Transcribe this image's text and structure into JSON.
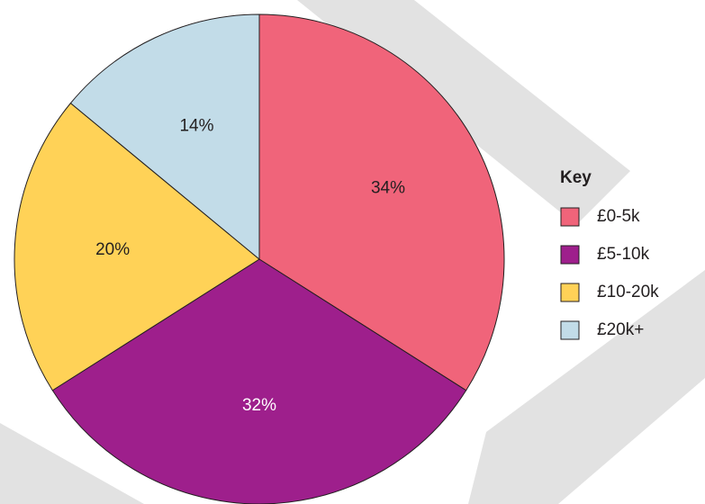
{
  "chart_data": {
    "type": "pie",
    "categories": [
      "£0-5k",
      "£5-10k",
      "£10-20k",
      "£20k+"
    ],
    "values": [
      34,
      32,
      20,
      14
    ],
    "value_labels": [
      "34%",
      "32%",
      "20%",
      "14%"
    ],
    "colors": [
      "#f0647a",
      "#9e1f8c",
      "#ffd257",
      "#c2dce8"
    ],
    "legend_title": "Key",
    "legend": "right"
  }
}
